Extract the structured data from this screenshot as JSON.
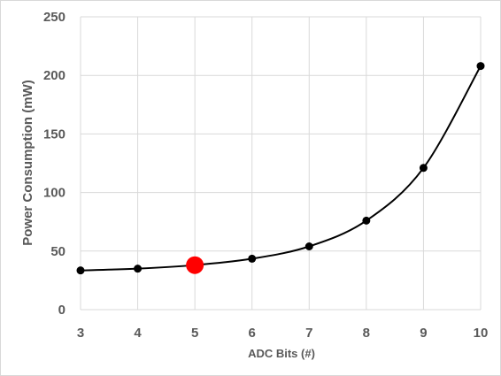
{
  "chart_data": {
    "type": "scatter",
    "title": "",
    "xlabel": "ADC Bits (#)",
    "ylabel": "Power Consumption (mW)",
    "xlim": [
      3,
      10
    ],
    "ylim": [
      0,
      250
    ],
    "x_ticks": [
      3,
      4,
      5,
      6,
      7,
      8,
      9,
      10
    ],
    "y_ticks": [
      0,
      50,
      100,
      150,
      200,
      250
    ],
    "grid": true,
    "smooth_line": true,
    "legend": "none",
    "series": [
      {
        "x": [
          3,
          4,
          5,
          6,
          7,
          8,
          9,
          10
        ],
        "y": [
          33.5,
          35,
          38,
          43.5,
          54,
          76,
          121,
          208
        ],
        "color": "#000000"
      }
    ],
    "highlight": {
      "x": 5,
      "y": 38,
      "color": "#ff0000"
    }
  }
}
